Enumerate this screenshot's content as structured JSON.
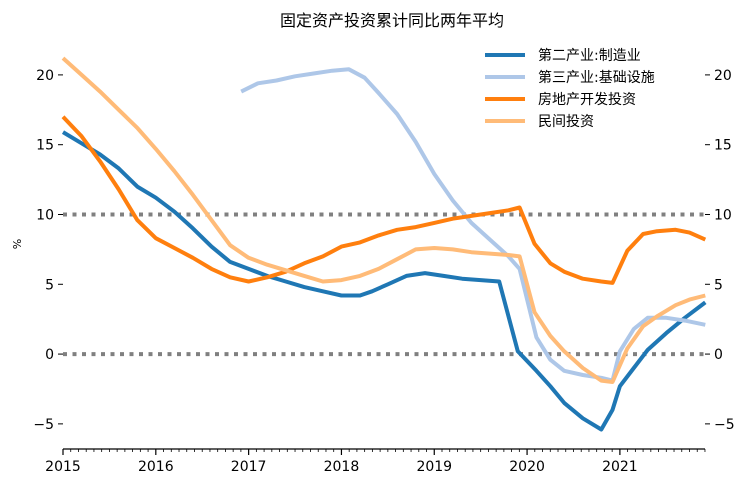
{
  "chart_data": {
    "type": "line",
    "title": "固定资产投资累计同比两年平均",
    "xlabel": "",
    "ylabel": "%",
    "xlim": [
      2015.0,
      2021.917
    ],
    "ylim": [
      -6.8,
      22.5
    ],
    "x_ticks": [
      2015,
      2016,
      2017,
      2018,
      2019,
      2020,
      2021
    ],
    "y_ticks": [
      -5,
      0,
      5,
      10,
      15,
      20
    ],
    "y_tick_labels": [
      "−5",
      "0",
      "5",
      "10",
      "15",
      "20"
    ],
    "reference_lines": [
      0,
      10
    ],
    "legend_position": "top-right",
    "series": [
      {
        "name": "第二产业:制造业",
        "color": "#1f77b4",
        "x": [
          2015.0,
          2015.2,
          2015.4,
          2015.6,
          2015.8,
          2016.0,
          2016.2,
          2016.4,
          2016.6,
          2016.8,
          2017.0,
          2017.2,
          2017.4,
          2017.6,
          2017.8,
          2018.0,
          2018.2,
          2018.33,
          2018.5,
          2018.7,
          2018.9,
          2019.1,
          2019.3,
          2019.5,
          2019.7,
          2019.9,
          2020.1,
          2020.25,
          2020.4,
          2020.6,
          2020.8,
          2020.92,
          2021.0,
          2021.15,
          2021.3,
          2021.5,
          2021.7,
          2021.92
        ],
        "values": [
          15.9,
          15.1,
          14.3,
          13.3,
          12.0,
          11.2,
          10.2,
          9.0,
          7.7,
          6.6,
          6.1,
          5.6,
          5.2,
          4.8,
          4.5,
          4.2,
          4.2,
          4.5,
          5.0,
          5.6,
          5.8,
          5.6,
          5.4,
          5.3,
          5.2,
          0.2,
          -1.2,
          -2.3,
          -3.5,
          -4.6,
          -5.4,
          -4.0,
          -2.3,
          -1.0,
          0.3,
          1.5,
          2.6,
          3.7
        ]
      },
      {
        "name": "第三产业:基础设施",
        "color": "#aec7e8",
        "x": [
          2016.92,
          2017.1,
          2017.3,
          2017.5,
          2017.7,
          2017.9,
          2018.08,
          2018.25,
          2018.4,
          2018.6,
          2018.8,
          2019.0,
          2019.2,
          2019.4,
          2019.6,
          2019.8,
          2019.92,
          2020.1,
          2020.25,
          2020.4,
          2020.6,
          2020.8,
          2020.92,
          2021.0,
          2021.15,
          2021.3,
          2021.5,
          2021.7,
          2021.92
        ],
        "values": [
          18.8,
          19.4,
          19.6,
          19.9,
          20.1,
          20.3,
          20.4,
          19.8,
          18.7,
          17.2,
          15.2,
          12.9,
          11.0,
          9.4,
          8.2,
          7.0,
          6.1,
          1.2,
          -0.4,
          -1.2,
          -1.5,
          -1.7,
          -1.9,
          0.2,
          1.8,
          2.6,
          2.6,
          2.4,
          2.1
        ]
      },
      {
        "name": "房地产开发投资",
        "color": "#ff7f0e",
        "x": [
          2015.0,
          2015.2,
          2015.4,
          2015.6,
          2015.8,
          2016.0,
          2016.2,
          2016.4,
          2016.6,
          2016.8,
          2017.0,
          2017.2,
          2017.4,
          2017.6,
          2017.8,
          2018.0,
          2018.2,
          2018.4,
          2018.6,
          2018.8,
          2019.0,
          2019.2,
          2019.4,
          2019.6,
          2019.8,
          2019.92,
          2020.08,
          2020.25,
          2020.4,
          2020.6,
          2020.8,
          2020.92,
          2021.08,
          2021.25,
          2021.4,
          2021.6,
          2021.75,
          2021.92
        ],
        "values": [
          17.0,
          15.6,
          13.8,
          11.8,
          9.6,
          8.3,
          7.6,
          6.9,
          6.1,
          5.5,
          5.2,
          5.5,
          5.9,
          6.5,
          7.0,
          7.7,
          8.0,
          8.5,
          8.9,
          9.1,
          9.4,
          9.7,
          9.9,
          10.1,
          10.3,
          10.5,
          7.9,
          6.5,
          5.9,
          5.4,
          5.2,
          5.1,
          7.4,
          8.6,
          8.8,
          8.9,
          8.7,
          8.2
        ]
      },
      {
        "name": "民间投资",
        "color": "#ffbb78",
        "x": [
          2015.0,
          2015.2,
          2015.4,
          2015.6,
          2015.8,
          2016.0,
          2016.2,
          2016.4,
          2016.6,
          2016.8,
          2017.0,
          2017.2,
          2017.4,
          2017.6,
          2017.8,
          2018.0,
          2018.2,
          2018.4,
          2018.6,
          2018.8,
          2019.0,
          2019.2,
          2019.4,
          2019.6,
          2019.8,
          2019.92,
          2020.08,
          2020.25,
          2020.4,
          2020.6,
          2020.8,
          2020.92,
          2021.08,
          2021.25,
          2021.4,
          2021.6,
          2021.75,
          2021.92
        ],
        "values": [
          21.2,
          20.0,
          18.8,
          17.5,
          16.2,
          14.7,
          13.1,
          11.4,
          9.6,
          7.8,
          6.9,
          6.4,
          6.0,
          5.6,
          5.2,
          5.3,
          5.6,
          6.1,
          6.8,
          7.5,
          7.6,
          7.5,
          7.3,
          7.2,
          7.1,
          7.0,
          3.0,
          1.3,
          0.2,
          -1.0,
          -1.9,
          -2.0,
          0.4,
          2.0,
          2.7,
          3.5,
          3.9,
          4.2
        ]
      }
    ]
  }
}
